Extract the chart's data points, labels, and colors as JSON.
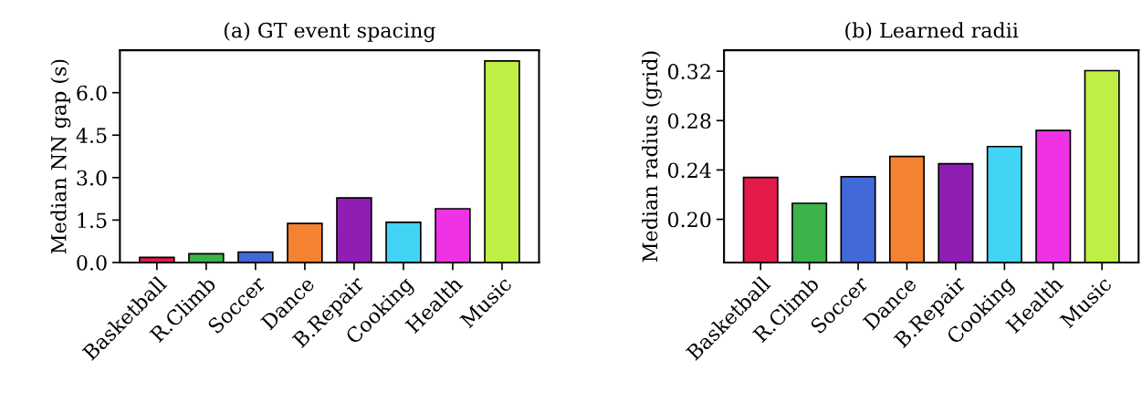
{
  "chart_data": [
    {
      "type": "bar",
      "title": "(a) GT event spacing",
      "ylabel": "Median NN gap (s)",
      "categories": [
        "Basketball",
        "R.Climb",
        "Soccer",
        "Dance",
        "B.Repair",
        "Cooking",
        "Health",
        "Music"
      ],
      "values": [
        0.18,
        0.31,
        0.37,
        1.38,
        2.28,
        1.42,
        1.9,
        7.12
      ],
      "colors": [
        "#e31a4a",
        "#3cb34a",
        "#4368d8",
        "#f58231",
        "#911eb4",
        "#42d4f4",
        "#f032e6",
        "#bfef45"
      ],
      "ylim": [
        0,
        7.5
      ],
      "yticks": [
        {
          "value": 0,
          "label": "0.0"
        },
        {
          "value": 1.5,
          "label": "1.5"
        },
        {
          "value": 3,
          "label": "3.0"
        },
        {
          "value": 4.5,
          "label": "4.5"
        },
        {
          "value": 6,
          "label": "6.0"
        }
      ]
    },
    {
      "type": "bar",
      "title": "(b) Learned radii",
      "ylabel": "Median radius (grid)",
      "categories": [
        "Basketball",
        "R.Climb",
        "Soccer",
        "Dance",
        "B.Repair",
        "Cooking",
        "Health",
        "Music"
      ],
      "values": [
        0.234,
        0.213,
        0.2345,
        0.251,
        0.245,
        0.259,
        0.272,
        0.3205
      ],
      "colors": [
        "#e31a4a",
        "#3cb34a",
        "#4368d8",
        "#f58231",
        "#911eb4",
        "#42d4f4",
        "#f032e6",
        "#bfef45"
      ],
      "ylim": [
        0.165,
        0.337
      ],
      "yticks": [
        {
          "value": 0.2,
          "label": "0.20"
        },
        {
          "value": 0.24,
          "label": "0.24"
        },
        {
          "value": 0.28,
          "label": "0.28"
        },
        {
          "value": 0.32,
          "label": "0.32"
        }
      ]
    }
  ]
}
